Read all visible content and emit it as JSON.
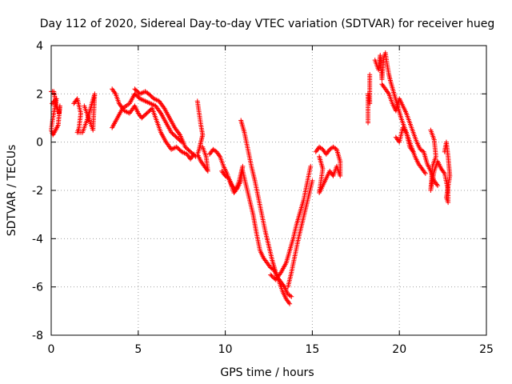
{
  "chart_data": {
    "type": "scatter",
    "title": "Day 112 of 2020, Sidereal Day-to-day VTEC variation (SDTVAR) for receiver hueg",
    "xlabel": "GPS time / hours",
    "ylabel": "SDTVAR / TECUs",
    "xlim": [
      0,
      25
    ],
    "ylim": [
      -8,
      4
    ],
    "x_ticks": [
      0,
      5,
      10,
      15,
      20,
      25
    ],
    "y_ticks": [
      -8,
      -6,
      -4,
      -2,
      0,
      2,
      4
    ],
    "grid": true,
    "marker": "+",
    "color": "#ff0000",
    "series": [
      {
        "name": "SDTVAR",
        "segments": [
          [
            [
              0.0,
              2.1
            ],
            [
              0.15,
              2.1
            ],
            [
              0.3,
              1.5
            ],
            [
              0.45,
              1.2
            ],
            [
              0.5,
              1.5
            ],
            [
              0.4,
              0.7
            ],
            [
              0.25,
              0.5
            ],
            [
              0.1,
              0.3
            ],
            [
              0.0,
              0.5
            ],
            [
              0.1,
              1.0
            ],
            [
              0.3,
              1.8
            ],
            [
              0.05,
              1.6
            ]
          ],
          [
            [
              1.3,
              1.6
            ],
            [
              1.5,
              1.8
            ],
            [
              1.7,
              1.2
            ],
            [
              1.6,
              0.6
            ],
            [
              1.5,
              0.4
            ],
            [
              1.8,
              0.4
            ],
            [
              2.1,
              1.0
            ],
            [
              2.3,
              1.5
            ],
            [
              2.5,
              2.0
            ],
            [
              2.4,
              0.5
            ],
            [
              2.2,
              0.9
            ],
            [
              1.9,
              1.5
            ]
          ],
          [
            [
              3.5,
              2.2
            ],
            [
              3.7,
              2.0
            ],
            [
              3.9,
              1.6
            ],
            [
              4.2,
              1.3
            ],
            [
              4.5,
              1.2
            ],
            [
              4.8,
              1.5
            ],
            [
              5.0,
              1.2
            ],
            [
              5.2,
              1.0
            ],
            [
              5.5,
              1.2
            ],
            [
              5.8,
              1.4
            ],
            [
              6.0,
              1.0
            ],
            [
              6.3,
              0.4
            ],
            [
              6.6,
              0.0
            ],
            [
              6.9,
              -0.3
            ],
            [
              7.2,
              -0.2
            ],
            [
              7.5,
              -0.4
            ],
            [
              7.8,
              -0.5
            ],
            [
              8.0,
              -0.7
            ],
            [
              8.2,
              -0.5
            ]
          ],
          [
            [
              3.5,
              0.6
            ],
            [
              3.8,
              1.0
            ],
            [
              4.1,
              1.4
            ],
            [
              4.5,
              1.6
            ],
            [
              4.8,
              2.0
            ],
            [
              5.1,
              1.8
            ],
            [
              5.4,
              1.7
            ],
            [
              5.7,
              1.6
            ],
            [
              6.0,
              1.5
            ],
            [
              6.3,
              1.2
            ],
            [
              6.6,
              0.8
            ],
            [
              6.9,
              0.4
            ],
            [
              7.2,
              0.2
            ],
            [
              7.5,
              0.0
            ]
          ],
          [
            [
              4.8,
              2.2
            ],
            [
              5.1,
              2.0
            ],
            [
              5.4,
              2.1
            ],
            [
              5.6,
              2.0
            ],
            [
              5.9,
              1.8
            ],
            [
              6.2,
              1.7
            ],
            [
              6.5,
              1.4
            ],
            [
              6.8,
              1.0
            ],
            [
              7.1,
              0.6
            ],
            [
              7.4,
              0.3
            ],
            [
              7.7,
              -0.2
            ],
            [
              8.0,
              -0.4
            ],
            [
              8.3,
              -0.6
            ]
          ],
          [
            [
              8.4,
              1.7
            ],
            [
              8.5,
              1.2
            ],
            [
              8.6,
              0.7
            ],
            [
              8.7,
              0.3
            ],
            [
              8.6,
              0.0
            ],
            [
              8.5,
              -0.3
            ],
            [
              8.4,
              -0.5
            ],
            [
              8.6,
              -0.8
            ],
            [
              8.8,
              -1.0
            ],
            [
              9.0,
              -1.2
            ],
            [
              8.9,
              -0.6
            ],
            [
              8.7,
              -0.2
            ]
          ],
          [
            [
              9.1,
              -0.5
            ],
            [
              9.3,
              -0.3
            ],
            [
              9.5,
              -0.4
            ],
            [
              9.7,
              -0.6
            ],
            [
              9.9,
              -1.0
            ],
            [
              10.1,
              -1.3
            ],
            [
              10.3,
              -1.7
            ],
            [
              10.5,
              -2.1
            ],
            [
              10.7,
              -1.9
            ],
            [
              10.9,
              -1.6
            ],
            [
              11.0,
              -1.0
            ],
            [
              10.8,
              -1.6
            ],
            [
              10.6,
              -2.0
            ],
            [
              10.4,
              -1.8
            ],
            [
              10.2,
              -1.5
            ],
            [
              10.0,
              -1.4
            ],
            [
              9.8,
              -1.2
            ]
          ],
          [
            [
              10.9,
              0.9
            ],
            [
              11.1,
              0.4
            ],
            [
              11.3,
              -0.3
            ],
            [
              11.5,
              -1.0
            ],
            [
              11.7,
              -1.6
            ],
            [
              11.9,
              -2.3
            ],
            [
              12.1,
              -3.0
            ],
            [
              12.3,
              -3.7
            ],
            [
              12.5,
              -4.3
            ],
            [
              12.7,
              -4.9
            ],
            [
              12.9,
              -5.4
            ],
            [
              13.1,
              -5.8
            ],
            [
              13.3,
              -6.2
            ],
            [
              13.5,
              -6.5
            ],
            [
              13.7,
              -6.7
            ]
          ],
          [
            [
              11.0,
              -1.2
            ],
            [
              11.2,
              -1.8
            ],
            [
              11.4,
              -2.4
            ],
            [
              11.6,
              -3.0
            ],
            [
              11.8,
              -3.8
            ],
            [
              12.0,
              -4.5
            ],
            [
              12.2,
              -4.8
            ],
            [
              12.4,
              -5.0
            ],
            [
              12.6,
              -5.2
            ],
            [
              12.8,
              -5.3
            ],
            [
              13.0,
              -5.6
            ],
            [
              13.2,
              -5.8
            ],
            [
              13.4,
              -6.0
            ],
            [
              13.6,
              -6.3
            ],
            [
              13.8,
              -6.4
            ]
          ],
          [
            [
              12.6,
              -5.5
            ],
            [
              12.9,
              -5.7
            ],
            [
              13.2,
              -5.4
            ],
            [
              13.5,
              -5.0
            ],
            [
              13.7,
              -4.5
            ],
            [
              13.9,
              -4.0
            ],
            [
              14.1,
              -3.4
            ],
            [
              14.3,
              -2.9
            ],
            [
              14.5,
              -2.4
            ],
            [
              14.7,
              -1.7
            ],
            [
              14.9,
              -1.0
            ]
          ],
          [
            [
              13.6,
              -6.0
            ],
            [
              13.8,
              -5.4
            ],
            [
              14.0,
              -4.7
            ],
            [
              14.2,
              -4.0
            ],
            [
              14.4,
              -3.4
            ],
            [
              14.6,
              -2.8
            ],
            [
              14.8,
              -2.2
            ],
            [
              15.0,
              -1.6
            ]
          ],
          [
            [
              15.2,
              -0.4
            ],
            [
              15.4,
              -0.2
            ],
            [
              15.6,
              -0.3
            ],
            [
              15.8,
              -0.5
            ],
            [
              16.0,
              -0.3
            ],
            [
              16.2,
              -0.2
            ],
            [
              16.4,
              -0.3
            ],
            [
              16.6,
              -0.8
            ],
            [
              16.6,
              -1.4
            ],
            [
              16.4,
              -1.0
            ],
            [
              16.2,
              -1.4
            ],
            [
              16.0,
              -1.2
            ],
            [
              15.8,
              -1.5
            ],
            [
              15.6,
              -1.8
            ],
            [
              15.4,
              -2.1
            ],
            [
              15.6,
              -1.1
            ],
            [
              15.4,
              -0.6
            ]
          ],
          [
            [
              18.2,
              0.8
            ],
            [
              18.2,
              2.0
            ],
            [
              18.3,
              1.6
            ],
            [
              18.3,
              2.8
            ]
          ],
          [
            [
              18.6,
              3.4
            ],
            [
              18.8,
              3.0
            ],
            [
              18.9,
              3.6
            ],
            [
              19.0,
              2.6
            ],
            [
              19.1,
              3.5
            ],
            [
              19.2,
              3.7
            ],
            [
              19.3,
              3.2
            ],
            [
              19.4,
              2.8
            ],
            [
              19.5,
              2.5
            ],
            [
              19.7,
              2.0
            ],
            [
              19.9,
              1.5
            ],
            [
              20.1,
              1.0
            ],
            [
              20.3,
              0.6
            ],
            [
              20.5,
              0.2
            ],
            [
              20.7,
              -0.2
            ],
            [
              20.9,
              -0.6
            ],
            [
              21.1,
              -0.9
            ],
            [
              21.3,
              -1.1
            ],
            [
              21.5,
              -1.3
            ]
          ],
          [
            [
              19.0,
              2.4
            ],
            [
              19.2,
              2.2
            ],
            [
              19.4,
              2.0
            ],
            [
              19.6,
              1.6
            ],
            [
              19.8,
              1.3
            ],
            [
              20.0,
              1.8
            ],
            [
              20.2,
              1.5
            ],
            [
              20.4,
              1.2
            ],
            [
              20.6,
              0.8
            ],
            [
              20.8,
              0.4
            ],
            [
              21.0,
              0.0
            ],
            [
              21.2,
              -0.3
            ],
            [
              21.4,
              -0.4
            ],
            [
              21.6,
              -0.9
            ],
            [
              21.8,
              -1.2
            ],
            [
              22.0,
              -1.6
            ],
            [
              22.2,
              -1.8
            ]
          ],
          [
            [
              19.8,
              0.2
            ],
            [
              20.0,
              0.0
            ],
            [
              20.2,
              0.6
            ],
            [
              20.4,
              0.4
            ],
            [
              20.6,
              -0.2
            ],
            [
              20.8,
              -0.4
            ]
          ],
          [
            [
              21.8,
              0.5
            ],
            [
              22.0,
              0.1
            ],
            [
              22.1,
              -0.6
            ],
            [
              21.9,
              -1.0
            ],
            [
              21.8,
              -2.0
            ],
            [
              22.0,
              -1.2
            ],
            [
              22.2,
              -0.8
            ],
            [
              22.4,
              -1.1
            ],
            [
              22.6,
              -1.3
            ],
            [
              22.8,
              -2.0
            ],
            [
              22.8,
              -2.5
            ],
            [
              22.7,
              -2.3
            ],
            [
              22.9,
              -1.4
            ],
            [
              22.8,
              -0.6
            ],
            [
              22.7,
              0.0
            ],
            [
              22.6,
              -0.4
            ]
          ]
        ]
      }
    ]
  }
}
